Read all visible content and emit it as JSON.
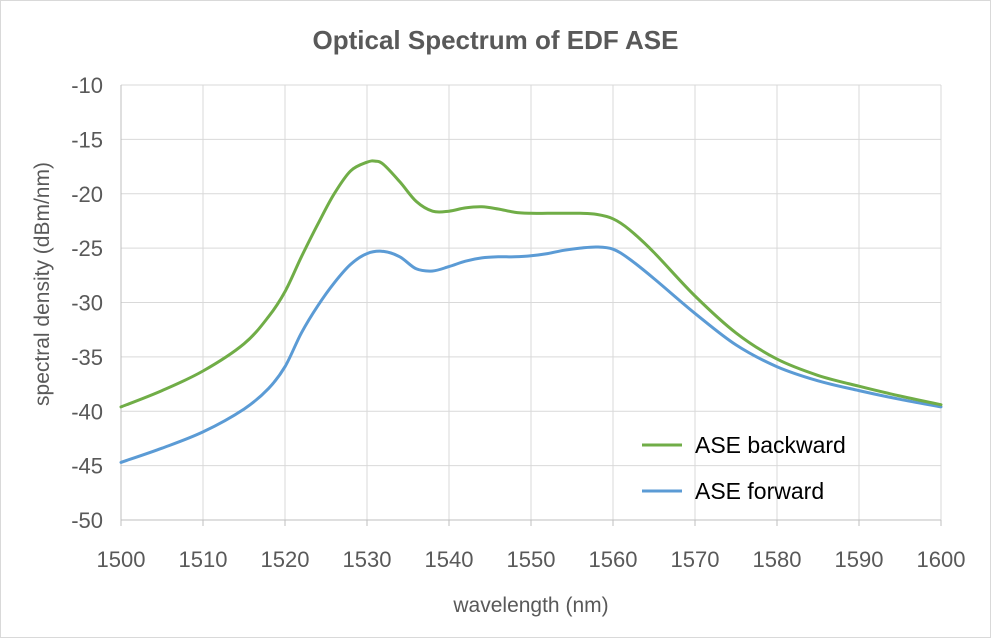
{
  "chart_data": {
    "type": "line",
    "title": "Optical Spectrum of EDF ASE",
    "xlabel": "wavelength (nm)",
    "ylabel": "spectral density (dBm/nm)",
    "xlim": [
      1500,
      1600
    ],
    "ylim": [
      -50,
      -10
    ],
    "xticks": [
      1500,
      1510,
      1520,
      1530,
      1540,
      1550,
      1560,
      1570,
      1580,
      1590,
      1600
    ],
    "yticks": [
      -10,
      -15,
      -20,
      -25,
      -30,
      -35,
      -40,
      -45,
      -50
    ],
    "grid": true,
    "legend_position": "bottom-right",
    "series": [
      {
        "name": "ASE backward",
        "color": "#70ad47",
        "x": [
          1500,
          1505,
          1510,
          1515,
          1518,
          1520,
          1522,
          1524,
          1526,
          1528,
          1530,
          1531,
          1532,
          1534,
          1536,
          1538,
          1540,
          1542,
          1544,
          1546,
          1548,
          1550,
          1552,
          1554,
          1556,
          1558,
          1560,
          1562,
          1565,
          1570,
          1575,
          1580,
          1585,
          1590,
          1595,
          1600
        ],
        "y": [
          -39.6,
          -38.1,
          -36.3,
          -33.8,
          -31.3,
          -29.0,
          -25.8,
          -22.8,
          -20.0,
          -17.9,
          -17.1,
          -17.0,
          -17.3,
          -18.9,
          -20.7,
          -21.6,
          -21.6,
          -21.3,
          -21.2,
          -21.4,
          -21.7,
          -21.8,
          -21.8,
          -21.8,
          -21.8,
          -21.9,
          -22.3,
          -23.3,
          -25.4,
          -29.4,
          -32.8,
          -35.2,
          -36.7,
          -37.7,
          -38.6,
          -39.4
        ]
      },
      {
        "name": "ASE forward",
        "color": "#5b9bd5",
        "x": [
          1500,
          1505,
          1510,
          1515,
          1518,
          1520,
          1522,
          1524,
          1526,
          1528,
          1530,
          1532,
          1534,
          1536,
          1538,
          1540,
          1542,
          1544,
          1546,
          1548,
          1550,
          1552,
          1554,
          1556,
          1558,
          1560,
          1562,
          1565,
          1570,
          1575,
          1580,
          1585,
          1590,
          1595,
          1600
        ],
        "y": [
          -44.7,
          -43.4,
          -41.9,
          -39.8,
          -37.9,
          -35.9,
          -32.8,
          -30.3,
          -28.2,
          -26.5,
          -25.5,
          -25.3,
          -25.8,
          -26.9,
          -27.1,
          -26.7,
          -26.2,
          -25.9,
          -25.8,
          -25.8,
          -25.7,
          -25.5,
          -25.2,
          -25.0,
          -24.9,
          -25.1,
          -26.0,
          -27.8,
          -31.0,
          -33.9,
          -35.9,
          -37.2,
          -38.1,
          -38.9,
          -39.6
        ]
      }
    ]
  }
}
